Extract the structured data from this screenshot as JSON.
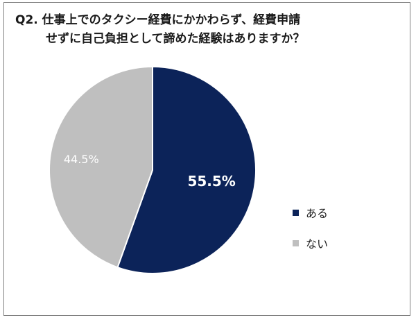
{
  "chart_data": {
    "type": "pie",
    "title_line1": "Q2. 仕事上でのタクシー経費にかかわらず、経費申請",
    "title_line2": "せずに自己負担として諦めた経験はありますか？",
    "slices": [
      {
        "label": "ある",
        "value": 55.5,
        "display": "55.5%",
        "color": "#0c2359"
      },
      {
        "label": "ない",
        "value": 44.5,
        "display": "44.5%",
        "color": "#bfbfbf"
      }
    ],
    "legend_position": "right"
  }
}
